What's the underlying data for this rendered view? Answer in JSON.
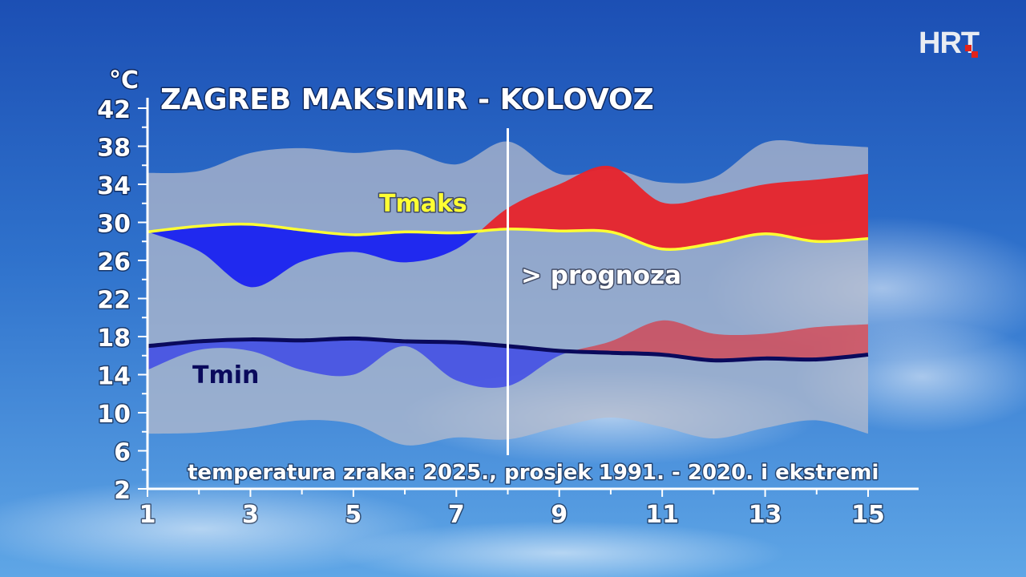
{
  "logo": {
    "text": "HRT",
    "accent_color": "#e2231a"
  },
  "chart_data": {
    "type": "area",
    "title": "ZAGREB MAKSIMIR - KOLOVOZ",
    "subtitle": "temperatura zraka: 2025., prosjek 1991. - 2020. i ekstremi",
    "ylabel": "°C",
    "ylim": [
      2,
      42
    ],
    "yticks": [
      2,
      6,
      10,
      14,
      18,
      22,
      26,
      30,
      34,
      38,
      42
    ],
    "xlim": [
      1,
      15
    ],
    "xticks": [
      1,
      3,
      5,
      7,
      9,
      11,
      13,
      15
    ],
    "x": [
      1,
      2,
      3,
      4,
      5,
      6,
      7,
      8,
      9,
      10,
      11,
      12,
      13,
      14,
      15
    ],
    "forecast_start_x": 8,
    "forecast_label": "> prognoza",
    "series": [
      {
        "name": "Tmaks",
        "role": "average",
        "color": "#ffff33",
        "values": [
          29.0,
          29.6,
          29.8,
          29.2,
          28.7,
          29.0,
          28.9,
          29.3,
          29.1,
          29.0,
          27.2,
          27.8,
          28.8,
          28.0,
          28.3
        ]
      },
      {
        "name": "Tmin",
        "role": "average",
        "color": "#0a0a5c",
        "values": [
          17.0,
          17.5,
          17.7,
          17.6,
          17.8,
          17.5,
          17.4,
          17.0,
          16.5,
          16.3,
          16.1,
          15.5,
          15.7,
          15.6,
          16.1
        ]
      },
      {
        "role": "observed-forecast",
        "values": [
          29.0,
          27.0,
          23.2,
          25.9,
          26.9,
          25.8,
          27.2,
          31.5,
          34.0,
          35.9,
          32.1,
          32.8,
          34.0,
          34.5,
          35.1
        ]
      },
      {
        "role": "observed-forecast",
        "values": [
          14.5,
          16.6,
          16.5,
          14.5,
          14.0,
          17.0,
          13.4,
          12.8,
          16.0,
          17.5,
          19.7,
          18.3,
          18.3,
          19.0,
          19.3
        ]
      }
    ],
    "extremes_band": {
      "upper": [
        35.2,
        35.4,
        37.3,
        37.8,
        37.3,
        37.6,
        36.1,
        38.5,
        35.1,
        35.6,
        34.2,
        34.7,
        38.4,
        38.2,
        37.9
      ],
      "lower": [
        7.8,
        7.9,
        8.4,
        9.2,
        8.8,
        6.6,
        7.4,
        7.2,
        8.5,
        9.5,
        8.5,
        7.3,
        8.4,
        9.2,
        7.8
      ]
    },
    "colors": {
      "above": "#e8232a",
      "below": "#1a22f0",
      "band": "#b8bccc"
    },
    "grid": false
  }
}
